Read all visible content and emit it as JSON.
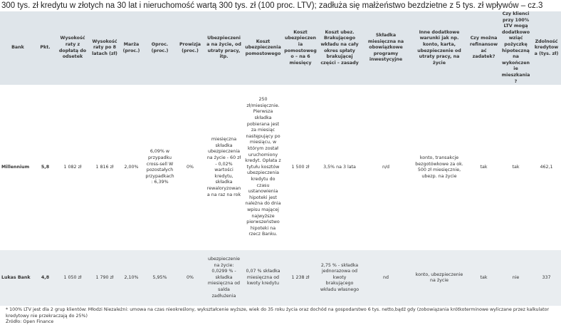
{
  "title": "300 tys. zł kredytu w złotych na 30 lat i nieruchomość wartą 300 tys. zł (100 proc. LTV); zadłuża się małżeństwo bezdzietne z 5 tys. zł wpływów – cz.3",
  "table": {
    "headers": [
      "Bank",
      "Pkt.",
      "Wysokość raty z dopłatą do odsetek",
      "Wysokość raty po 8 latach (zł)",
      "Marża (proc.)",
      "Oproc. (proc.)",
      "Prowizja (proc.)",
      "Ubezpieczenia na życie, od utraty pracy, itp.",
      "Koszt ubezpieczenia pomostowego",
      "Koszt ubezpieczenia pomostowego – na 6 miesięcy",
      "Koszt ubez. Brakującego wkładu na cały okres spłaty brakującej części – zasady",
      "Składka miesięczna na obowiązkowe programy inwestycyjne",
      "Inne dodatkowe warunki jak np. konto, karta, ubezpieczenie od utraty pracy, na życie",
      "Czy można refinansować zadatek?",
      "Czy klienci przy 100% LTV mogą dodatkowo wziąć pożyczkę hipoteczną na wykończenie mieszkania?",
      "Zdolność kredytowa (tys. zł)"
    ],
    "rows": [
      [
        "Millennium",
        "5,8",
        "1 082 zł",
        "1 816 zł",
        "2,00%",
        "6,09% w przypadku cross-sell W pozostałych przypadkach : 6,39%",
        "0%",
        "miesięczna składka ubezpieczenia na życie - 60 zł - 0,02% wartości kredytu, składka rewaloryzowana na raz na rok",
        "250 zł/miesięcznie. Pierwsza składka pobierana jest za miesiąc następujący po miesiącu, w którym został uruchomiony kredyt. Opłata z tytułu kosztów ubezpieczenia kredytu do czasu ustanowienia hipoteki jest należna do dnia wpisu mającej najwyższe pierwszeństwo hipoteki na rzecz Banku.",
        "1 500 zł",
        "3,5% na 3 lata",
        "n/d",
        "konto, transakcje bezgotówkowe za ok. 500 zł miesięcznie, ubezp. na życie",
        "tak",
        "tak",
        "462,1"
      ],
      [
        "Lukas Bank",
        "4,8",
        "1 050 zł",
        "1 790 zł",
        "2,10%",
        "5,95%",
        "0%",
        "ubezpieczenie na życie: 0,0299 % - składka miesięczna od salda zadłużenia",
        "0,07 % składka miesięczna od kwoty kredytu",
        "1 238 zł",
        "2,75 % - składka jednorazowa od kwoty brakującego wkładu własnego",
        "nd",
        "konto, ubezpieczenie na życie",
        "tak",
        "nie",
        "337"
      ]
    ]
  },
  "footnotes": [
    "* 100% LTV jest dla 2 grup klientów: Młodzi Niezależni: umowa na czas nieokreślony, wykształcenie wyższe, wiek do 35 roku życia oraz dochód na gospodarstwo 6 tys. netto,bądź gdy (zobowiązania krótkoterminowe wyliczane przez kalkulator kredytowy nie przekraczają do 25%)",
    "Źródło: Open Finance"
  ]
}
